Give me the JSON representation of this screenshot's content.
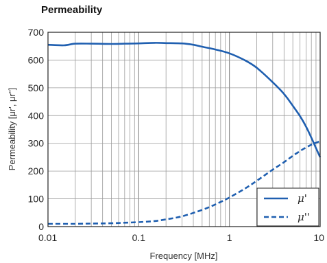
{
  "chart_data": {
    "type": "line",
    "title": "Permeability",
    "xlabel": "Frequency [MHz]",
    "ylabel": "Permeability [μr', μr'']",
    "xscale": "log",
    "xlim": [
      0.01,
      10
    ],
    "ylim": [
      0,
      700
    ],
    "x_ticks": [
      "0.01",
      "0.1",
      "1",
      "10"
    ],
    "y_ticks": [
      "0",
      "100",
      "200",
      "300",
      "400",
      "500",
      "600",
      "700"
    ],
    "grid": true,
    "legend_position": "bottom-right",
    "series": [
      {
        "name": "μ'",
        "style": "solid",
        "color": "#1f5fb0",
        "points": [
          [
            0.01,
            655
          ],
          [
            0.015,
            653
          ],
          [
            0.02,
            659
          ],
          [
            0.03,
            659
          ],
          [
            0.05,
            658
          ],
          [
            0.07,
            659
          ],
          [
            0.1,
            660
          ],
          [
            0.15,
            662
          ],
          [
            0.2,
            661
          ],
          [
            0.3,
            660
          ],
          [
            0.4,
            655
          ],
          [
            0.5,
            648
          ],
          [
            0.7,
            638
          ],
          [
            1.0,
            624
          ],
          [
            1.5,
            598
          ],
          [
            2.0,
            572
          ],
          [
            3.0,
            520
          ],
          [
            4.0,
            478
          ],
          [
            5.0,
            435
          ],
          [
            6.0,
            398
          ],
          [
            7.0,
            360
          ],
          [
            8.0,
            320
          ],
          [
            9.0,
            283
          ],
          [
            10.0,
            250
          ]
        ]
      },
      {
        "name": "μ''",
        "style": "dashed",
        "color": "#1f5fb0",
        "points": [
          [
            0.01,
            10
          ],
          [
            0.02,
            10
          ],
          [
            0.03,
            11
          ],
          [
            0.05,
            12
          ],
          [
            0.07,
            14
          ],
          [
            0.1,
            16
          ],
          [
            0.15,
            20
          ],
          [
            0.2,
            26
          ],
          [
            0.3,
            37
          ],
          [
            0.5,
            60
          ],
          [
            0.7,
            80
          ],
          [
            1.0,
            105
          ],
          [
            1.5,
            138
          ],
          [
            2.0,
            165
          ],
          [
            3.0,
            205
          ],
          [
            4.0,
            232
          ],
          [
            5.0,
            255
          ],
          [
            6.0,
            272
          ],
          [
            7.0,
            285
          ],
          [
            8.0,
            295
          ],
          [
            9.0,
            302
          ],
          [
            10.0,
            308
          ]
        ]
      }
    ]
  }
}
